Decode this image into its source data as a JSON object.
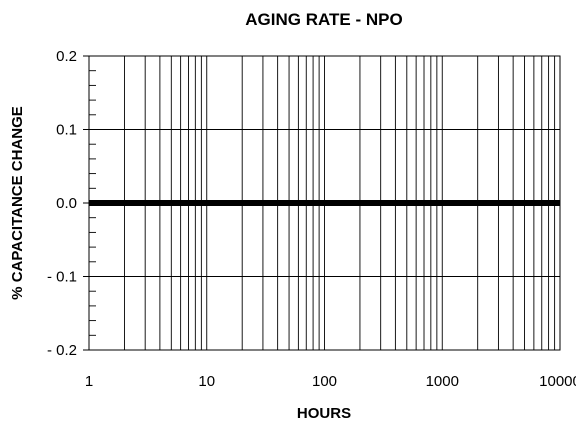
{
  "chart_data": {
    "type": "line",
    "title": "AGING RATE - NPO",
    "xlabel": "HOURS",
    "ylabel": "% CAPACITANCE CHANGE",
    "x_scale": "log",
    "xlim": [
      1,
      10000
    ],
    "ylim": [
      -0.2,
      0.2
    ],
    "x_ticks": [
      1,
      10,
      100,
      1000,
      10000
    ],
    "x_tick_labels": [
      "1",
      "10",
      "100",
      "1000",
      "10000"
    ],
    "y_ticks": [
      0.2,
      0.1,
      0.0,
      -0.1,
      -0.2
    ],
    "y_tick_labels": [
      "0.2",
      "0.1",
      "0.0",
      "- 0.1",
      "- 0.2"
    ],
    "y_minor_step": 0.02,
    "grid": true,
    "series": [
      {
        "x": [
          1,
          10000
        ],
        "y": [
          0.0,
          0.0
        ],
        "color": "#000000"
      }
    ]
  }
}
